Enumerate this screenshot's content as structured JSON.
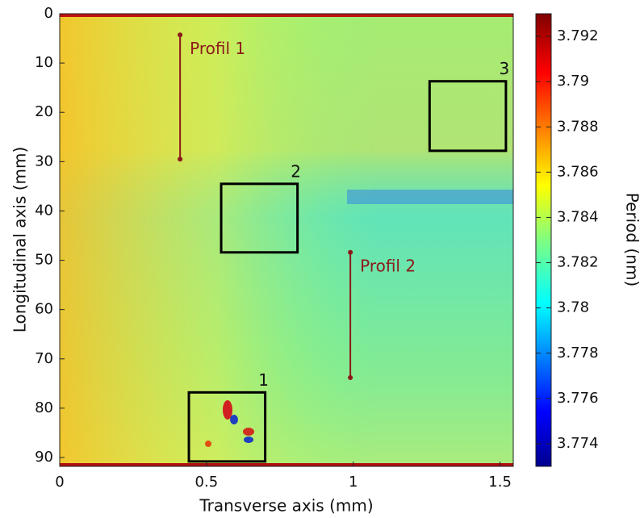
{
  "chart_data": {
    "type": "heatmap",
    "xlabel": "Transverse axis (mm)",
    "ylabel": "Longitudinal axis (mm)",
    "colorbar_label": "Period (nm)",
    "xlim": [
      0,
      1.545
    ],
    "xticks": [
      0,
      0.5,
      1,
      1.5
    ],
    "ylim": [
      91.8,
      0
    ],
    "yticks": [
      0,
      10,
      20,
      30,
      40,
      50,
      60,
      70,
      80,
      90
    ],
    "colormap": "jet",
    "clim": [
      3.773,
      3.793
    ],
    "cticks": [
      3.774,
      3.776,
      3.778,
      3.78,
      3.782,
      3.784,
      3.786,
      3.788,
      3.79,
      3.792
    ],
    "profiles": [
      {
        "label": "Profil 1",
        "x": 0.41,
        "y": [
          4.3,
          29.5
        ],
        "color": "#8b1a1a"
      },
      {
        "label": "Profil 2",
        "x": 0.99,
        "y": [
          48.4,
          73.8
        ],
        "color": "#8b1a1a"
      }
    ],
    "boxes": [
      {
        "label": "1",
        "x": [
          0.44,
          0.7
        ],
        "y": [
          76.8,
          90.8
        ]
      },
      {
        "label": "2",
        "x": [
          0.55,
          0.81
        ],
        "y": [
          34.5,
          48.4
        ]
      },
      {
        "label": "3",
        "x": [
          1.26,
          1.52
        ],
        "y": [
          13.7,
          27.8
        ]
      }
    ]
  }
}
